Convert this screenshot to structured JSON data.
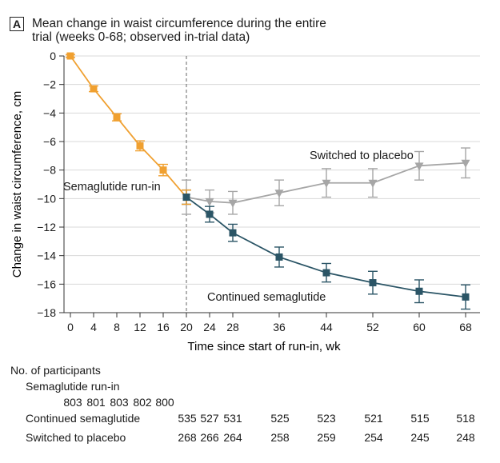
{
  "panel_label": "A",
  "title_lines": [
    "Mean change in waist circumference during the entire",
    "trial (weeks 0-68; observed in-trial data)"
  ],
  "chart_data": {
    "type": "line",
    "title": "Mean change in waist circumference during the entire trial (weeks 0-68; observed in-trial data)",
    "xlabel": "Time since start of run-in, wk",
    "ylabel": "Change in waist circumference, cm",
    "x_ticks": [
      0,
      4,
      8,
      12,
      16,
      20,
      24,
      28,
      36,
      44,
      52,
      60,
      68
    ],
    "y_ticks": [
      0,
      -2,
      -4,
      -6,
      -8,
      -10,
      -12,
      -14,
      -16,
      -18
    ],
    "xlim": [
      0,
      68
    ],
    "ylim": [
      -18,
      0
    ],
    "grid": "horizontal",
    "reference_line_x": 20,
    "series": [
      {
        "name": "Semaglutide run-in",
        "color": "#f0a030",
        "marker": "square",
        "x": [
          0,
          4,
          8,
          12,
          16,
          20
        ],
        "y": [
          0,
          -2.3,
          -4.3,
          -6.3,
          -8.0,
          -9.9
        ],
        "err": [
          0.1,
          0.2,
          0.25,
          0.35,
          0.4,
          0.5
        ]
      },
      {
        "name": "Continued semaglutide",
        "color": "#2b5566",
        "marker": "square",
        "x": [
          20,
          24,
          28,
          36,
          44,
          52,
          60,
          68
        ],
        "y": [
          -9.9,
          -11.1,
          -12.4,
          -14.1,
          -15.2,
          -15.9,
          -16.5,
          -16.9
        ],
        "err": [
          0.5,
          0.55,
          0.6,
          0.7,
          0.65,
          0.8,
          0.8,
          0.85
        ]
      },
      {
        "name": "Switched to placebo",
        "color": "#a6a6a6",
        "marker": "triangle-down",
        "x": [
          20,
          24,
          28,
          36,
          44,
          52,
          60,
          68
        ],
        "y": [
          -9.9,
          -10.2,
          -10.3,
          -9.6,
          -8.9,
          -8.9,
          -7.7,
          -7.5
        ],
        "err": [
          1.2,
          0.8,
          0.8,
          0.9,
          1.0,
          1.0,
          1.0,
          1.05
        ]
      }
    ],
    "annotations": [
      {
        "text": "Switched to placebo",
        "series": "Switched to placebo"
      },
      {
        "text": "Semaglutide run-in",
        "series": "Semaglutide run-in"
      },
      {
        "text": "Continued semaglutide",
        "series": "Continued semaglutide"
      }
    ]
  },
  "participants": {
    "heading": "No. of participants",
    "run_in": {
      "label": "Semaglutide run-in",
      "counts": [
        "803",
        "801",
        "803",
        "802",
        "800"
      ]
    },
    "continued": {
      "label": "Continued semaglutide",
      "counts": [
        "535",
        "527",
        "531",
        "525",
        "523",
        "521",
        "515",
        "518"
      ]
    },
    "placebo": {
      "label": "Switched to placebo",
      "counts": [
        "268",
        "266",
        "264",
        "258",
        "259",
        "254",
        "245",
        "248"
      ]
    }
  }
}
